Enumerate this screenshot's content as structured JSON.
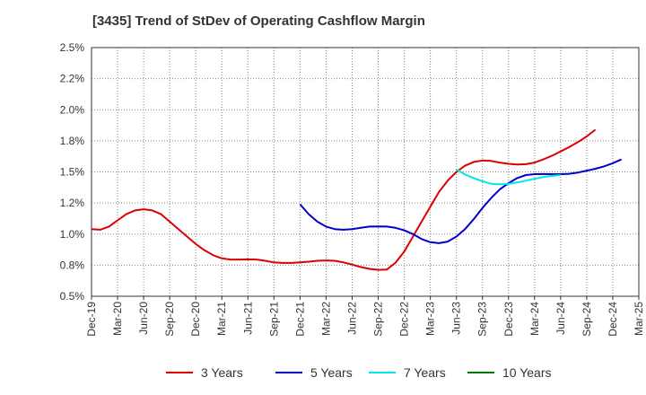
{
  "chart_data": {
    "type": "line",
    "title": "[3435]  Trend of StDev of Operating Cashflow Margin",
    "xlabel": "",
    "ylabel": "",
    "x_ticks": [
      "Dec-19",
      "Mar-20",
      "Jun-20",
      "Sep-20",
      "Dec-20",
      "Mar-21",
      "Jun-21",
      "Sep-21",
      "Dec-21",
      "Mar-22",
      "Jun-22",
      "Sep-22",
      "Dec-22",
      "Mar-23",
      "Jun-23",
      "Sep-23",
      "Dec-23",
      "Mar-24",
      "Jun-24",
      "Sep-24",
      "Dec-24",
      "Mar-25"
    ],
    "y_ticks": [
      "0.5%",
      "0.8%",
      "1.0%",
      "1.2%",
      "1.5%",
      "1.8%",
      "2.0%",
      "2.2%",
      "2.5%"
    ],
    "ylim": [
      0.5,
      2.5
    ],
    "grid": true,
    "legend_position": "bottom",
    "series": [
      {
        "name": "3 Years",
        "color": "#dd0000",
        "points": [
          [
            "Dec-19",
            1.04
          ],
          [
            "Jan-20",
            1.035
          ],
          [
            "Feb-20",
            1.06
          ],
          [
            "Mar-20",
            1.11
          ],
          [
            "Apr-20",
            1.16
          ],
          [
            "May-20",
            1.19
          ],
          [
            "Jun-20",
            1.2
          ],
          [
            "Jul-20",
            1.19
          ],
          [
            "Aug-20",
            1.16
          ],
          [
            "Sep-20",
            1.1
          ],
          [
            "Oct-20",
            1.04
          ],
          [
            "Nov-20",
            0.98
          ],
          [
            "Dec-20",
            0.92
          ],
          [
            "Jan-21",
            0.87
          ],
          [
            "Feb-21",
            0.83
          ],
          [
            "Mar-21",
            0.805
          ],
          [
            "Apr-21",
            0.795
          ],
          [
            "May-21",
            0.795
          ],
          [
            "Jun-21",
            0.797
          ],
          [
            "Jul-21",
            0.795
          ],
          [
            "Aug-21",
            0.785
          ],
          [
            "Sep-21",
            0.772
          ],
          [
            "Oct-21",
            0.768
          ],
          [
            "Nov-21",
            0.768
          ],
          [
            "Dec-21",
            0.772
          ],
          [
            "Jan-22",
            0.778
          ],
          [
            "Feb-22",
            0.785
          ],
          [
            "Mar-22",
            0.788
          ],
          [
            "Apr-22",
            0.785
          ],
          [
            "May-22",
            0.772
          ],
          [
            "Jun-22",
            0.755
          ],
          [
            "Jul-22",
            0.735
          ],
          [
            "Aug-22",
            0.72
          ],
          [
            "Sep-22",
            0.712
          ],
          [
            "Oct-22",
            0.715
          ],
          [
            "Nov-22",
            0.77
          ],
          [
            "Dec-22",
            0.86
          ],
          [
            "Jan-23",
            0.98
          ],
          [
            "Feb-23",
            1.1
          ],
          [
            "Mar-23",
            1.22
          ],
          [
            "Apr-23",
            1.34
          ],
          [
            "May-23",
            1.43
          ],
          [
            "Jun-23",
            1.5
          ],
          [
            "Jul-23",
            1.55
          ],
          [
            "Aug-23",
            1.58
          ],
          [
            "Sep-23",
            1.592
          ],
          [
            "Oct-23",
            1.588
          ],
          [
            "Nov-23",
            1.575
          ],
          [
            "Dec-23",
            1.565
          ],
          [
            "Jan-24",
            1.56
          ],
          [
            "Feb-24",
            1.562
          ],
          [
            "Mar-24",
            1.575
          ],
          [
            "Apr-24",
            1.6
          ],
          [
            "May-24",
            1.63
          ],
          [
            "Jun-24",
            1.665
          ],
          [
            "Jul-24",
            1.7
          ],
          [
            "Aug-24",
            1.74
          ],
          [
            "Sep-24",
            1.785
          ],
          [
            "Oct-24",
            1.84
          ]
        ]
      },
      {
        "name": "5 Years",
        "color": "#0000cc",
        "points": [
          [
            "Dec-21",
            1.24
          ],
          [
            "Jan-22",
            1.16
          ],
          [
            "Feb-22",
            1.1
          ],
          [
            "Mar-22",
            1.06
          ],
          [
            "Apr-22",
            1.04
          ],
          [
            "May-22",
            1.035
          ],
          [
            "Jun-22",
            1.04
          ],
          [
            "Jul-22",
            1.05
          ],
          [
            "Aug-22",
            1.06
          ],
          [
            "Sep-22",
            1.062
          ],
          [
            "Oct-22",
            1.06
          ],
          [
            "Nov-22",
            1.05
          ],
          [
            "Dec-22",
            1.03
          ],
          [
            "Jan-23",
            1.0
          ],
          [
            "Feb-23",
            0.96
          ],
          [
            "Mar-23",
            0.935
          ],
          [
            "Apr-23",
            0.927
          ],
          [
            "May-23",
            0.94
          ],
          [
            "Jun-23",
            0.98
          ],
          [
            "Jul-23",
            1.04
          ],
          [
            "Aug-23",
            1.12
          ],
          [
            "Sep-23",
            1.21
          ],
          [
            "Oct-23",
            1.29
          ],
          [
            "Nov-23",
            1.36
          ],
          [
            "Dec-23",
            1.41
          ],
          [
            "Jan-24",
            1.45
          ],
          [
            "Feb-24",
            1.475
          ],
          [
            "Mar-24",
            1.482
          ],
          [
            "Apr-24",
            1.483
          ],
          [
            "May-24",
            1.482
          ],
          [
            "Jun-24",
            1.482
          ],
          [
            "Jul-24",
            1.485
          ],
          [
            "Aug-24",
            1.495
          ],
          [
            "Sep-24",
            1.51
          ],
          [
            "Oct-24",
            1.525
          ],
          [
            "Nov-24",
            1.545
          ],
          [
            "Dec-24",
            1.57
          ],
          [
            "Jan-25",
            1.6
          ]
        ]
      },
      {
        "name": "7 Years",
        "color": "#00e5ee",
        "points": [
          [
            "Jun-23",
            1.52
          ],
          [
            "Jul-23",
            1.48
          ],
          [
            "Aug-23",
            1.45
          ],
          [
            "Sep-23",
            1.425
          ],
          [
            "Oct-23",
            1.405
          ],
          [
            "Nov-23",
            1.4
          ],
          [
            "Dec-23",
            1.405
          ],
          [
            "Jan-24",
            1.415
          ],
          [
            "Feb-24",
            1.43
          ],
          [
            "Mar-24",
            1.445
          ],
          [
            "Apr-24",
            1.458
          ],
          [
            "May-24",
            1.468
          ],
          [
            "Jun-24",
            1.475
          ]
        ]
      },
      {
        "name": "10 Years",
        "color": "#007700",
        "points": []
      }
    ]
  }
}
